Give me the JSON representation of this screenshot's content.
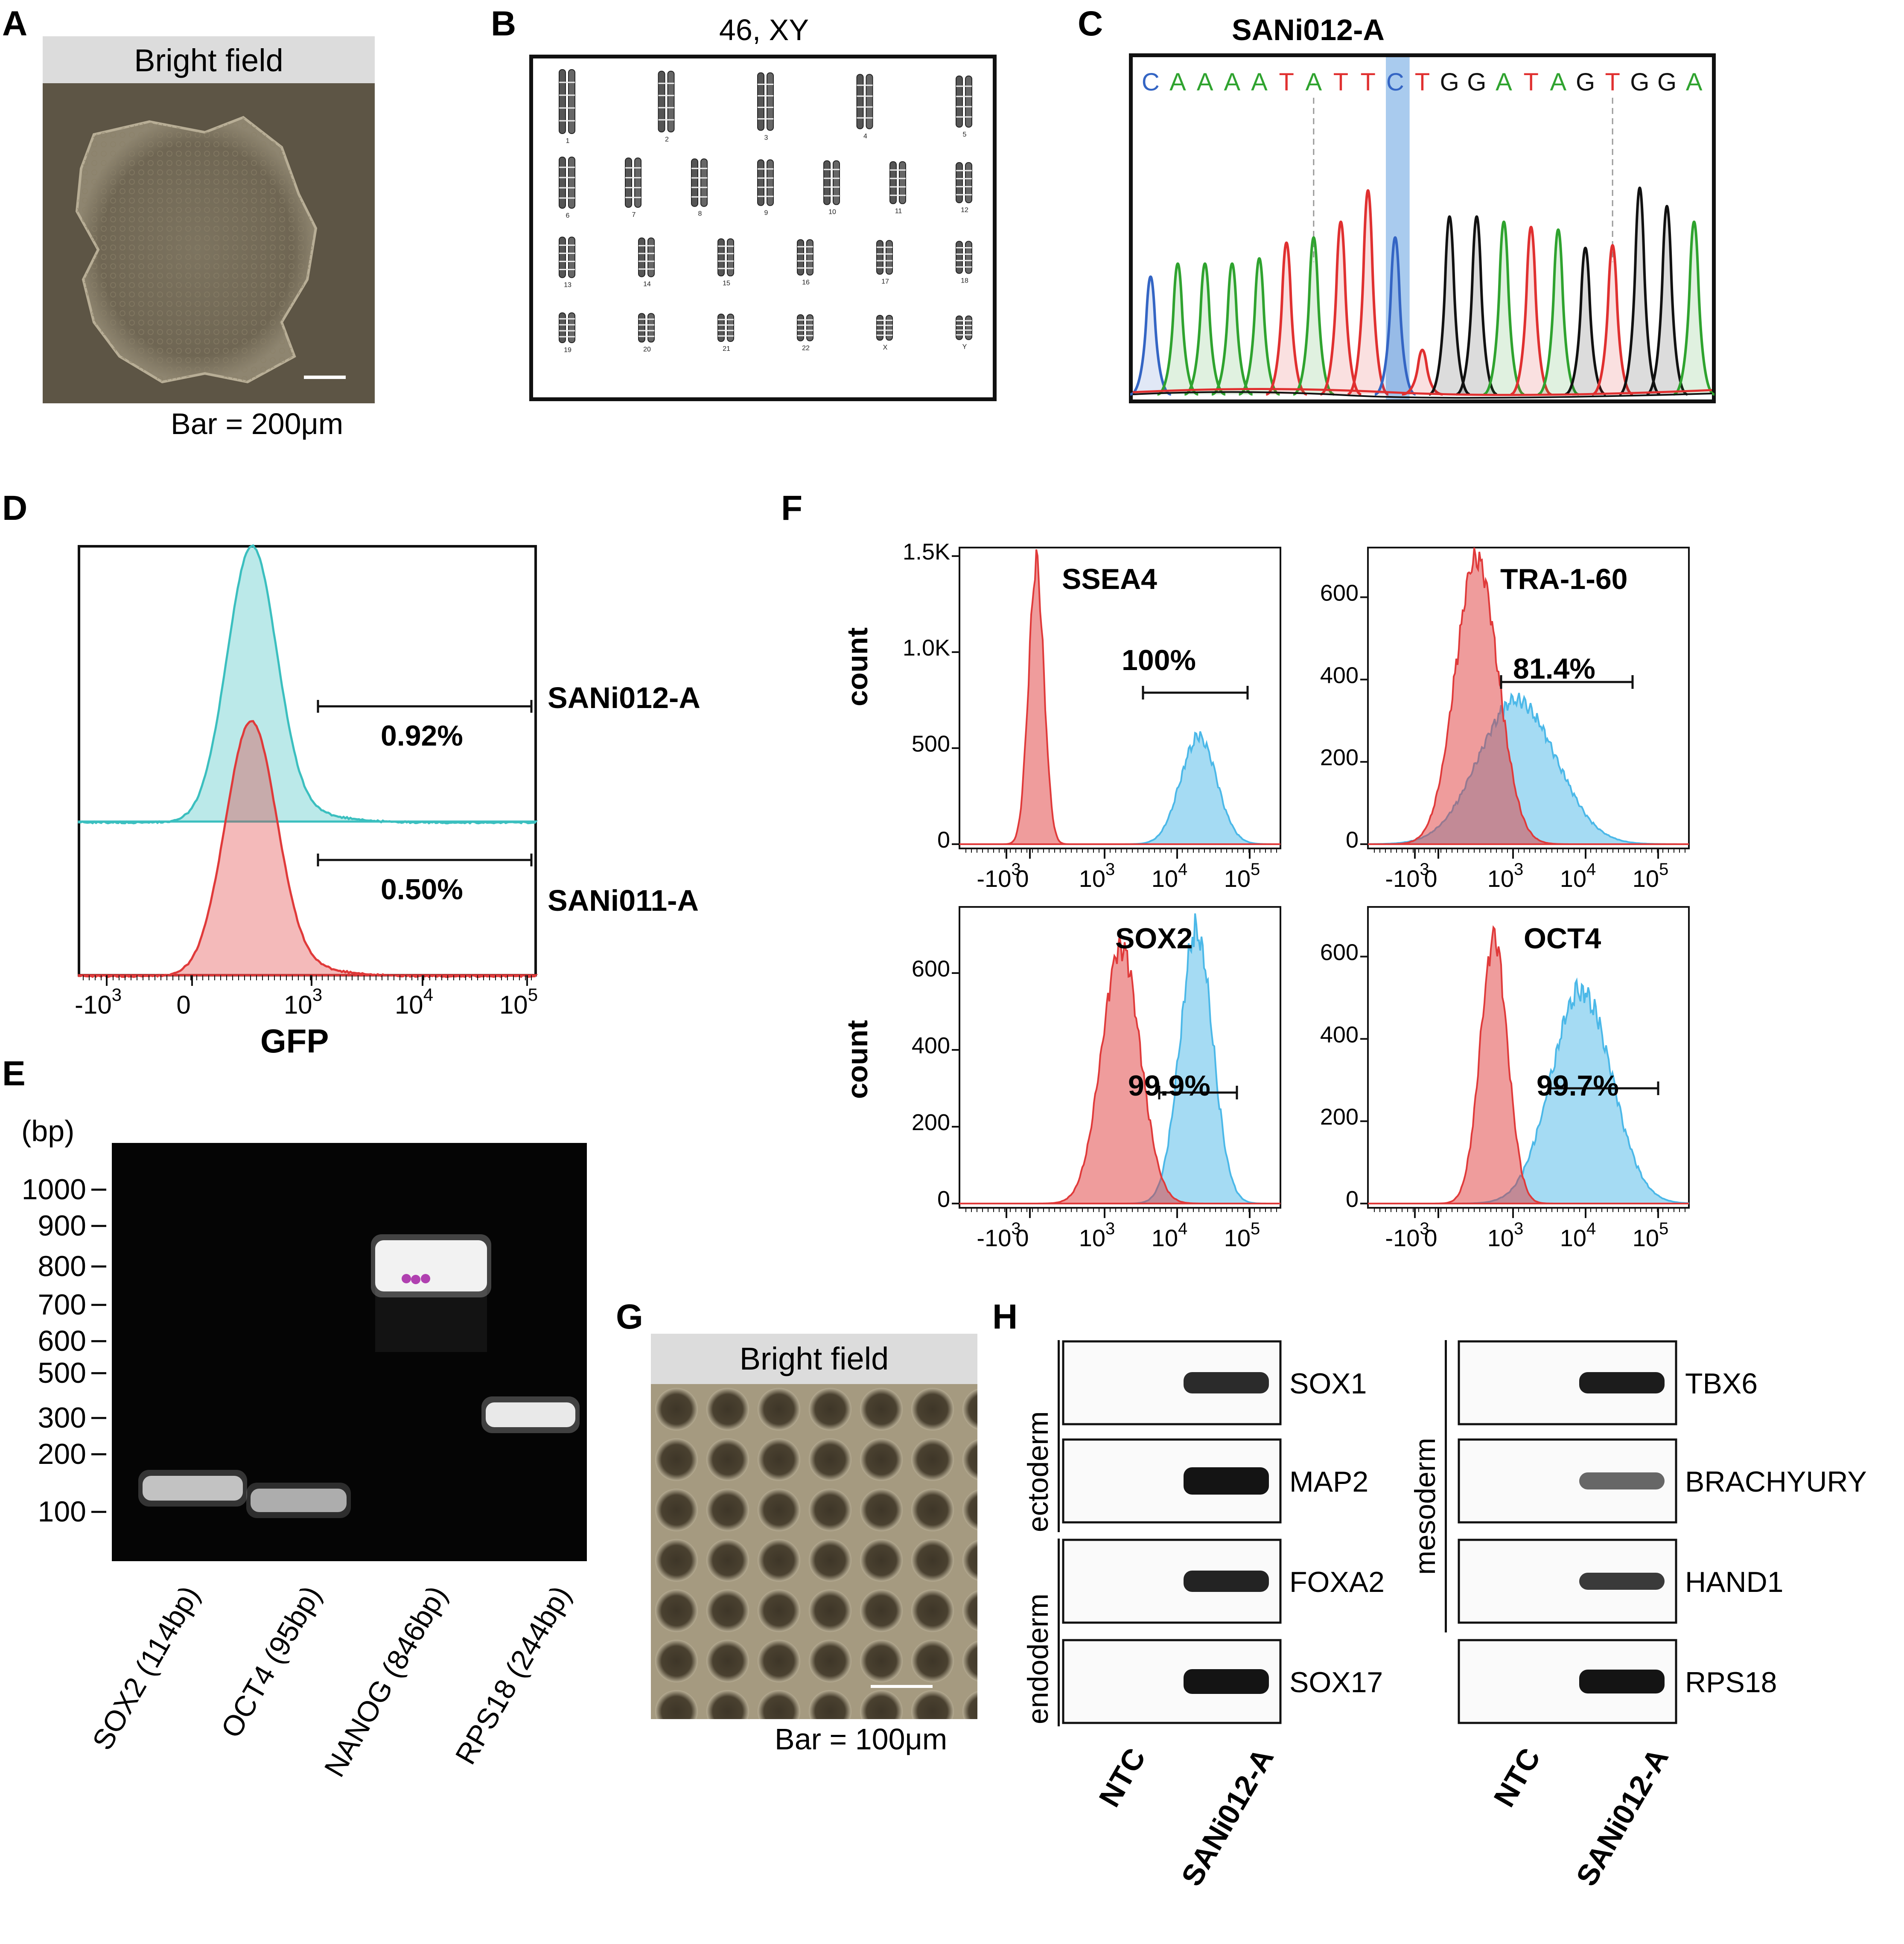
{
  "panels": {
    "A": {
      "label": "A",
      "header": "Bright field",
      "scalebar": "Bar = 200μm"
    },
    "B": {
      "label": "B",
      "title": "46, XY",
      "chromosomes": [
        "1",
        "2",
        "3",
        "4",
        "5",
        "6",
        "7",
        "8",
        "9",
        "10",
        "11",
        "12",
        "13",
        "14",
        "15",
        "16",
        "17",
        "18",
        "19",
        "20",
        "21",
        "22",
        "X",
        "Y"
      ]
    },
    "C": {
      "label": "C",
      "title": "SANi012-A",
      "bases": [
        {
          "b": "C",
          "c": "#3465c4"
        },
        {
          "b": "A",
          "c": "#2fa32f"
        },
        {
          "b": "A",
          "c": "#2fa32f"
        },
        {
          "b": "A",
          "c": "#2fa32f"
        },
        {
          "b": "A",
          "c": "#2fa32f"
        },
        {
          "b": "T",
          "c": "#e03030"
        },
        {
          "b": "A",
          "c": "#2fa32f"
        },
        {
          "b": "T",
          "c": "#e03030"
        },
        {
          "b": "T",
          "c": "#e03030"
        },
        {
          "b": "C",
          "c": "#3465c4"
        },
        {
          "b": "T",
          "c": "#e03030"
        },
        {
          "b": "G",
          "c": "#111111"
        },
        {
          "b": "G",
          "c": "#111111"
        },
        {
          "b": "A",
          "c": "#2fa32f"
        },
        {
          "b": "T",
          "c": "#e03030"
        },
        {
          "b": "A",
          "c": "#2fa32f"
        },
        {
          "b": "G",
          "c": "#111111"
        },
        {
          "b": "T",
          "c": "#e03030"
        },
        {
          "b": "G",
          "c": "#111111"
        },
        {
          "b": "G",
          "c": "#111111"
        },
        {
          "b": "A",
          "c": "#2fa32f"
        }
      ]
    },
    "D": {
      "label": "D",
      "xlabel": "GFP",
      "ticks": [
        "-10^3",
        "0",
        "10^3",
        "10^4",
        "10^5"
      ],
      "samples": [
        {
          "name": "SANi012-A",
          "percent": "0.92%",
          "color": "#3bbfbf"
        },
        {
          "name": "SANi011-A",
          "percent": "0.50%",
          "color": "#e03a3a"
        }
      ]
    },
    "E": {
      "label": "E",
      "unit": "(bp)",
      "ladder": [
        "1000",
        "900",
        "800",
        "700",
        "600",
        "500",
        "300",
        "200",
        "100"
      ],
      "lanes": [
        "SOX2 (114bp)",
        "OCT4 (95bp)",
        "NANOG (846bp)",
        "RPS18 (244bp)"
      ]
    },
    "F": {
      "label": "F",
      "ylabel": "count",
      "xticks": [
        "-10^3",
        "0",
        "10^3",
        "10^4",
        "10^5"
      ],
      "plots": [
        {
          "marker": "SSEA4",
          "percent": "100%",
          "yticks": [
            "0",
            "500",
            "1.0K",
            "1.5K"
          ]
        },
        {
          "marker": "TRA-1-60",
          "percent": "81.4%",
          "yticks": [
            "0",
            "200",
            "400",
            "600"
          ]
        },
        {
          "marker": "SOX2",
          "percent": "99.9%",
          "yticks": [
            "0",
            "200",
            "400",
            "600"
          ]
        },
        {
          "marker": "OCT4",
          "percent": "99.7%",
          "yticks": [
            "0",
            "200",
            "400",
            "600"
          ]
        }
      ],
      "colors": {
        "control": "#e03a3a",
        "stain": "#4bb8e8"
      }
    },
    "G": {
      "label": "G",
      "header": "Bright field",
      "scalebar": "Bar = 100μm"
    },
    "H": {
      "label": "H",
      "left": {
        "groups": [
          {
            "name": "ectoderm"
          },
          {
            "name": "endoderm"
          }
        ],
        "genes": [
          "SOX1",
          "MAP2",
          "FOXA2",
          "SOX17"
        ],
        "columns": [
          "NTC",
          "SANi012-A"
        ]
      },
      "right": {
        "groups": [
          {
            "name": "mesoderm"
          }
        ],
        "genes": [
          "TBX6",
          "BRACHYURY",
          "HAND1",
          "RPS18"
        ],
        "columns": [
          "NTC",
          "SANi012-A"
        ]
      }
    }
  }
}
